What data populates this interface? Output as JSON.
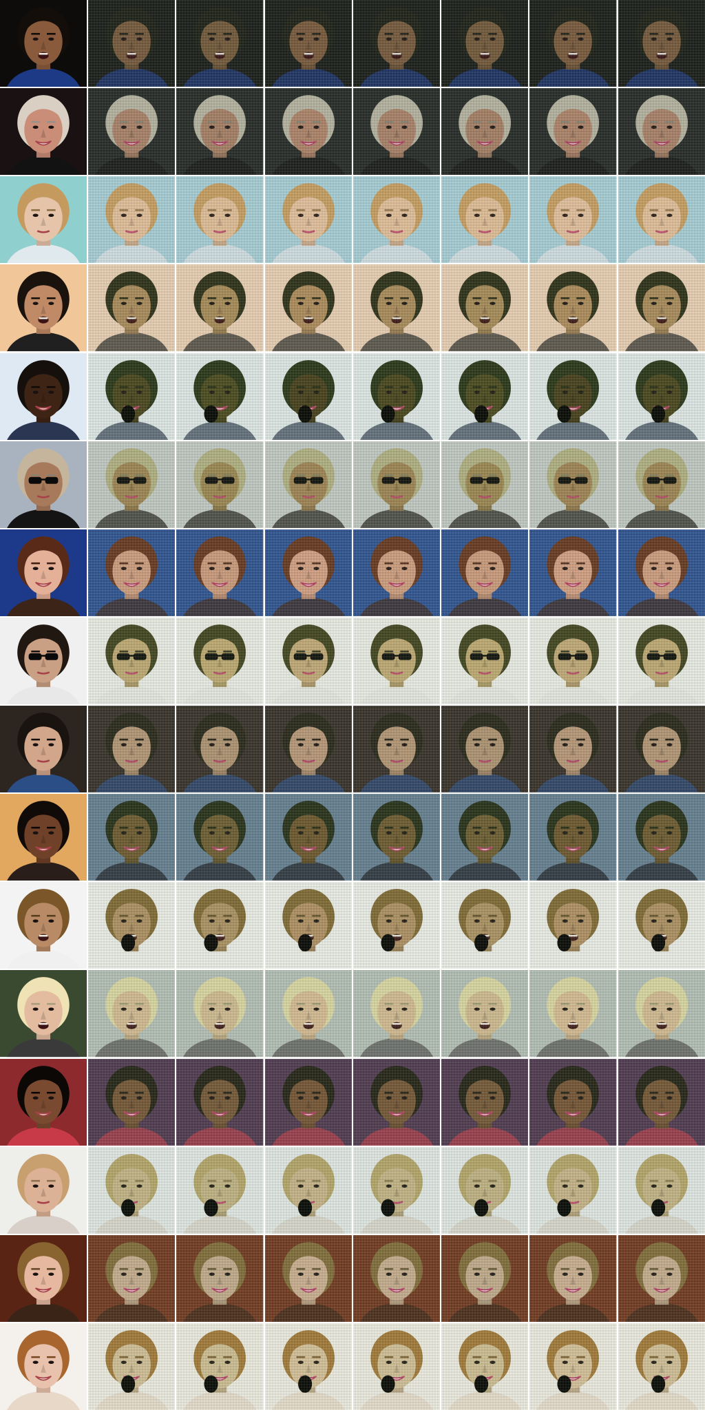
{
  "grid": {
    "columns": 8,
    "column_roles": [
      "input",
      "output",
      "output",
      "output",
      "output",
      "output",
      "output",
      "output"
    ],
    "rows": [
      {
        "bg": "#0e0c0b",
        "skin": "#8a5a3c",
        "hair": "#140e0a",
        "shirt": "#1d3a86",
        "gen_bg": "#1c211c",
        "tint": "#3c5a3a",
        "mouth": "open",
        "glasses": false,
        "occlusion": false
      },
      {
        "bg": "#1a1212",
        "skin": "#c98d78",
        "hair": "#d9cfc3",
        "shirt": "#121212",
        "gen_bg": "#283030",
        "tint": "#50603c",
        "mouth": "smile",
        "glasses": false,
        "occlusion": false
      },
      {
        "bg": "#8fd0cf",
        "skin": "#e6c4aa",
        "hair": "#c49a5e",
        "shirt": "#dfe9ee",
        "gen_bg": "#a8cfe0",
        "tint": "#c6a96b",
        "mouth": "closed",
        "glasses": false,
        "occlusion": false
      },
      {
        "bg": "#f1c79a",
        "skin": "#c08a66",
        "hair": "#1a120c",
        "shirt": "#202020",
        "gen_bg": "#eed5c4",
        "tint": "#6a8a3c",
        "mouth": "open",
        "glasses": false,
        "occlusion": false
      },
      {
        "bg": "#dfe9f4",
        "skin": "#3e2414",
        "hair": "#16100c",
        "shirt": "#2a3652",
        "gen_bg": "#e8ecee",
        "tint": "#6aa03c",
        "mouth": "smile",
        "glasses": false,
        "occlusion": true
      },
      {
        "bg": "#a9b3c0",
        "skin": "#a87a5c",
        "hair": "#c4b59c",
        "shirt": "#141414",
        "gen_bg": "#cdd1cf",
        "tint": "#7aa03c",
        "mouth": "closed",
        "glasses": true,
        "occlusion": false
      },
      {
        "bg": "#1d3a8a",
        "skin": "#e4b098",
        "hair": "#5a2a18",
        "shirt": "#3c2418",
        "gen_bg": "#2e5c9a",
        "tint": "#8a6a3c",
        "mouth": "smile",
        "glasses": false,
        "occlusion": false
      },
      {
        "bg": "#f0f0f0",
        "skin": "#caa084",
        "hair": "#221812",
        "shirt": "#e8e8e8",
        "gen_bg": "#ececec",
        "tint": "#9ac04a",
        "mouth": "closed",
        "glasses": true,
        "occlusion": false
      },
      {
        "bg": "#2c2520",
        "skin": "#d2a68a",
        "hair": "#1a1410",
        "shirt": "#2c4e86",
        "gen_bg": "#3a3530",
        "tint": "#5a6a3c",
        "mouth": "closed",
        "glasses": false,
        "occlusion": false
      },
      {
        "bg": "#e2a860",
        "skin": "#6e4128",
        "hair": "#100a08",
        "shirt": "#2a1e1a",
        "gen_bg": "#3e6ea8",
        "tint": "#6aa04a",
        "mouth": "smile",
        "glasses": false,
        "occlusion": false
      },
      {
        "bg": "#f3f3f3",
        "skin": "#b88a66",
        "hair": "#7a5628",
        "shirt": "#f0f0f0",
        "gen_bg": "#eeeeee",
        "tint": "#8aa05a",
        "mouth": "open",
        "glasses": false,
        "occlusion": true
      },
      {
        "bg": "#3a4a30",
        "skin": "#e3bca0",
        "hair": "#efe2b4",
        "shirt": "#3a3a3a",
        "gen_bg": "#dde4e8",
        "tint": "#9ab06a",
        "mouth": "open",
        "glasses": false,
        "occlusion": false
      },
      {
        "bg": "#8c2a2e",
        "skin": "#7a4a30",
        "hair": "#0c0806",
        "shirt": "#c83a48",
        "gen_bg": "#3a3c5c",
        "tint": "#6a7a4a",
        "mouth": "smile",
        "glasses": false,
        "occlusion": false
      },
      {
        "bg": "#eeeeea",
        "skin": "#dcb296",
        "hair": "#c8a070",
        "shirt": "#d8d0c8",
        "gen_bg": "#e4e8ee",
        "tint": "#7ab05a",
        "mouth": "closed",
        "glasses": false,
        "occlusion": true
      },
      {
        "bg": "#5a2414",
        "skin": "#e6b8a0",
        "hair": "#8a6430",
        "shirt": "#3a2418",
        "gen_bg": "#7a3c22",
        "tint": "#6a8a5a",
        "mouth": "smile",
        "glasses": false,
        "occlusion": false
      },
      {
        "bg": "#f4f0ec",
        "skin": "#e8c2ac",
        "hair": "#a8662e",
        "shirt": "#e8d8c8",
        "gen_bg": "#f0ece8",
        "tint": "#8ab05a",
        "mouth": "smile",
        "glasses": false,
        "occlusion": true
      }
    ]
  }
}
